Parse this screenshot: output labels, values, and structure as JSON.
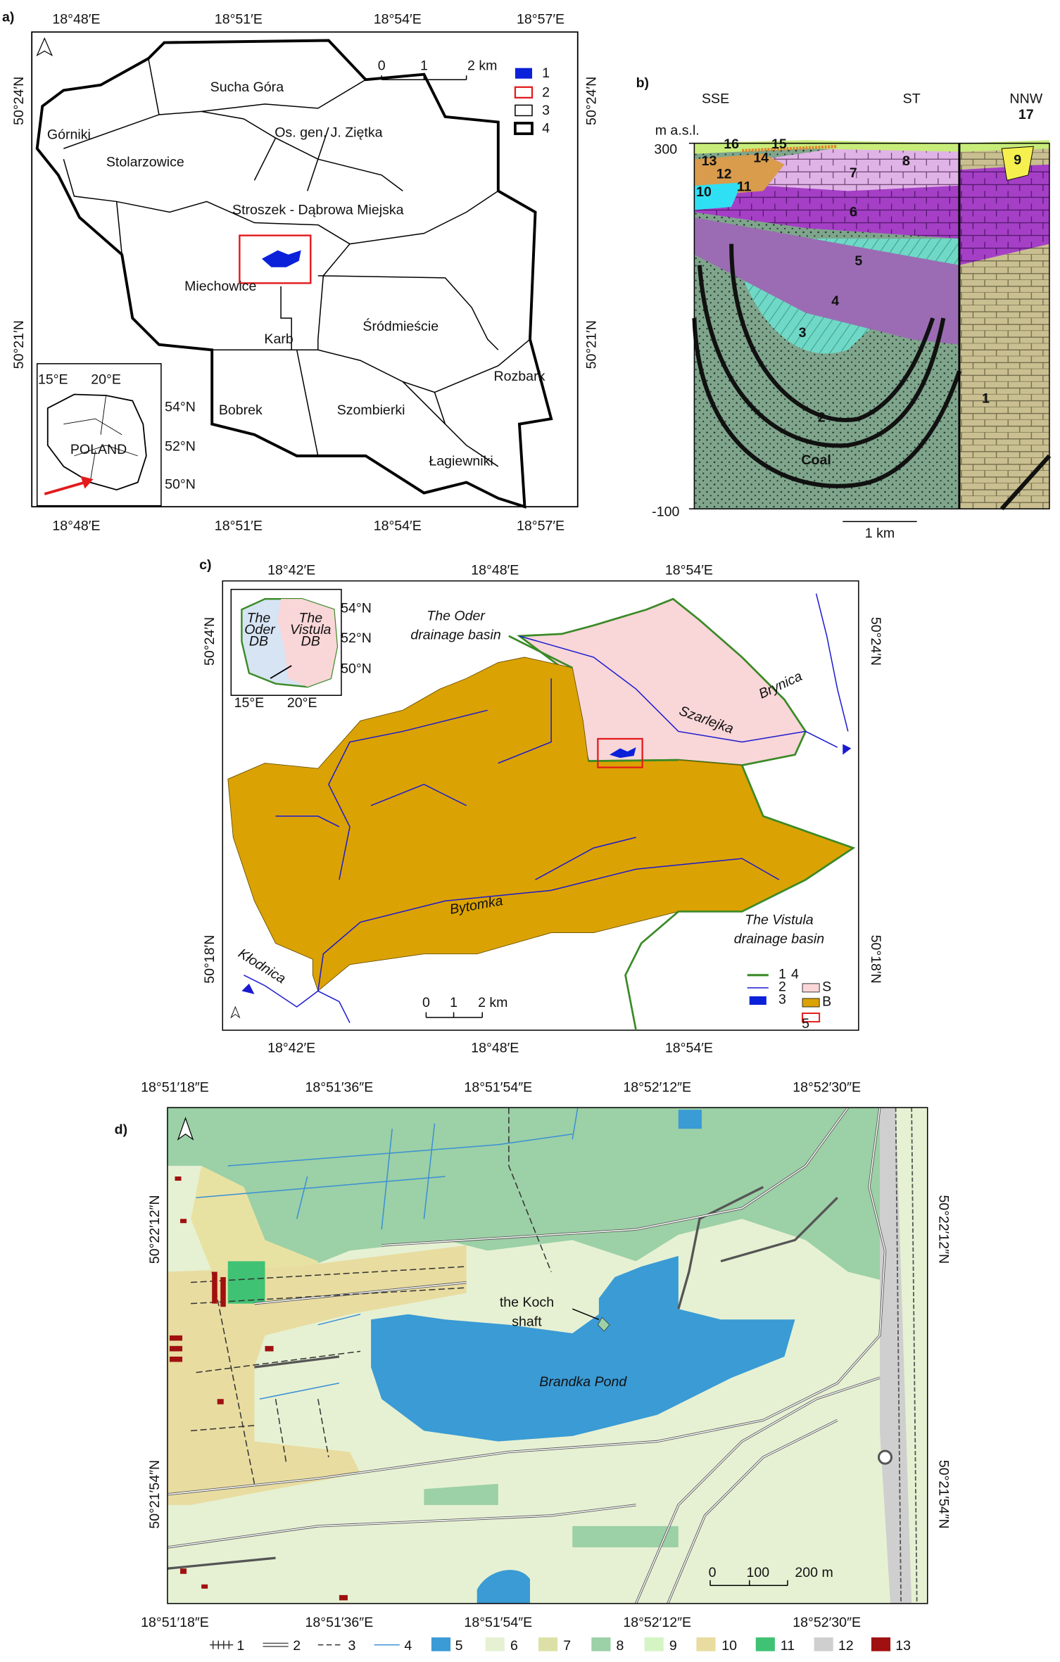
{
  "panel_a": {
    "label": "a)",
    "lon_ticks": [
      "18°48′E",
      "18°51′E",
      "18°54′E",
      "18°57′E"
    ],
    "lat_ticks": [
      "50°24′N",
      "50°21′N"
    ],
    "places": [
      "Sucha Góra",
      "Górniki",
      "Os. gen. J. Ziętka",
      "Stolarzowice",
      "Stroszek - Dąbrowa Miejska",
      "Miechowice",
      "Karb",
      "Śródmieście",
      "Rozbark",
      "Bobrek",
      "Szombierki",
      "Łagiewniki"
    ],
    "scale": [
      "0",
      "1",
      "2 km"
    ],
    "legend": [
      "1",
      "2",
      "3",
      "4"
    ],
    "inset": {
      "lon": [
        "15°E",
        "20°E"
      ],
      "lat": [
        "54°N",
        "52°N",
        "50°N"
      ],
      "country": "POLAND"
    }
  },
  "panel_b": {
    "label": "b)",
    "directions": [
      "SSE",
      "ST",
      "NNW"
    ],
    "axis_title": "m a.s.l.",
    "elevations": [
      "300",
      "-100"
    ],
    "scale": "1 km",
    "units": [
      "1",
      "2",
      "3",
      "4",
      "5",
      "6",
      "7",
      "8",
      "9",
      "10",
      "11",
      "12",
      "13",
      "14",
      "15",
      "16",
      "17"
    ],
    "coal": "Coal"
  },
  "panel_c": {
    "label": "c)",
    "lon_ticks": [
      "18°42′E",
      "18°48′E",
      "18°54′E"
    ],
    "lat_ticks": [
      "50°24′N",
      "50°18′N"
    ],
    "inset": {
      "lat": [
        "54°N",
        "52°N",
        "50°N"
      ],
      "lon": [
        "15°E",
        "20°E"
      ],
      "oder": [
        "The",
        "Oder",
        "DB"
      ],
      "vistula": [
        "The",
        "Vistula",
        "DB"
      ]
    },
    "oder_basin": [
      "The Oder",
      "drainage basin"
    ],
    "rivers": [
      "Szarlejka",
      "Brynica",
      "Bytomka",
      "Kłodnica"
    ],
    "vistula_basin": [
      "The Vistula",
      "drainage basin"
    ],
    "scale": [
      "0",
      "1",
      "2 km"
    ],
    "legend": [
      "1",
      "2",
      "3",
      "4",
      "S",
      "B",
      "5"
    ]
  },
  "panel_d": {
    "label": "d)",
    "lon_ticks": [
      "18°51′18″E",
      "18°51′36″E",
      "18°51′54″E",
      "18°52′12″E",
      "18°52′30″E"
    ],
    "lat_ticks": [
      "50°22′12″N",
      "50°21′54″N"
    ],
    "shaft": [
      "the Koch",
      "shaft"
    ],
    "pond": "Brandka Pond",
    "scale": [
      "0",
      "100",
      "200 m"
    ],
    "legend": [
      "1",
      "2",
      "3",
      "4",
      "5",
      "6",
      "7",
      "8",
      "9",
      "10",
      "11",
      "12",
      "13"
    ]
  }
}
